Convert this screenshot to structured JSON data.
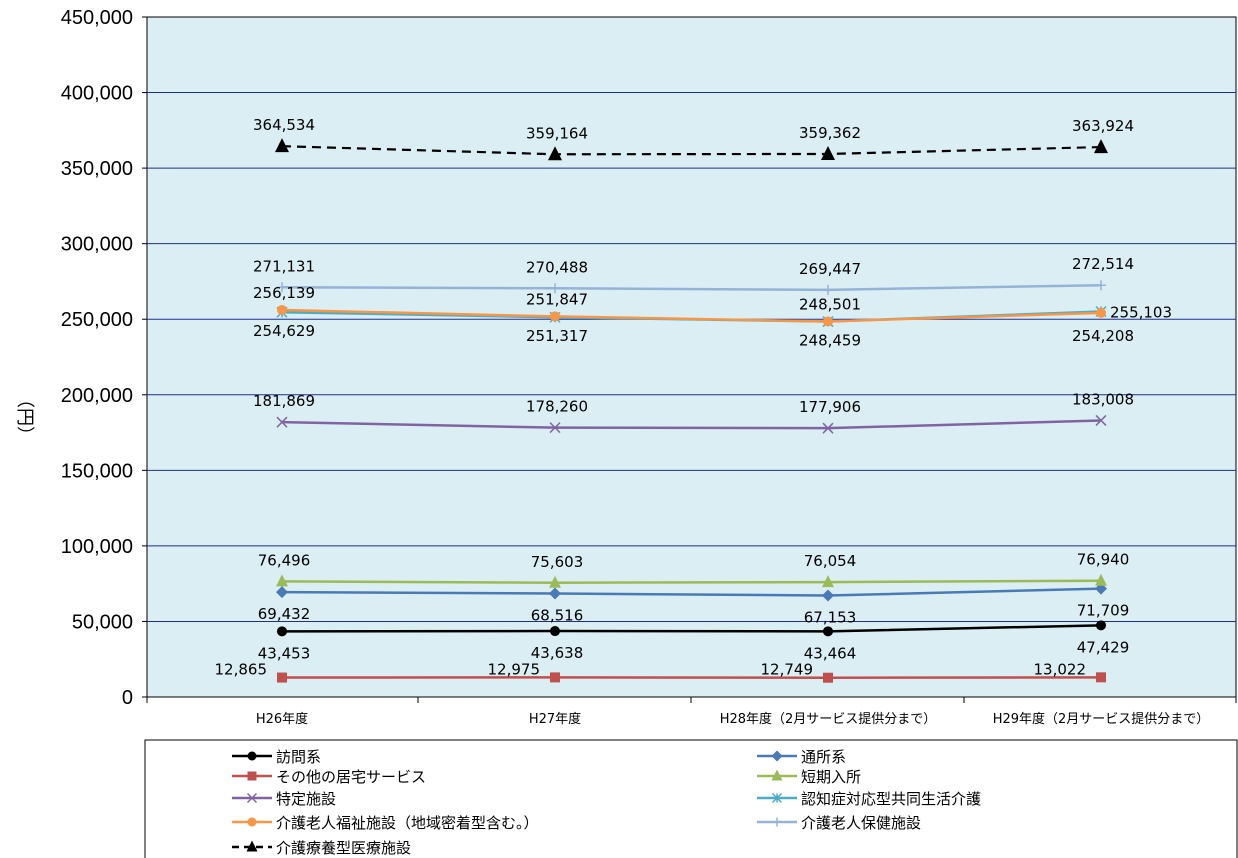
{
  "chart_data": {
    "type": "line",
    "ylabel": "（円）",
    "ylim": [
      0,
      450000
    ],
    "ytick_step": 50000,
    "ytick_labels": [
      "0",
      "50,000",
      "100,000",
      "150,000",
      "200,000",
      "250,000",
      "300,000",
      "350,000",
      "400,000",
      "450,000"
    ],
    "categories": [
      "H26年度",
      "H27年度",
      "H28年度（2月サービス提供分まで）",
      "H29年度（2月サービス提供分まで）"
    ],
    "grid": true,
    "plot_background": "#daeef3",
    "gridline_color": "#1f2f8f",
    "legend_position": "bottom",
    "series": [
      {
        "name": "訪問系",
        "values": [
          43453,
          43638,
          43464,
          47429
        ],
        "labels": [
          "43,453",
          "43,638",
          "43,464",
          "47,429"
        ],
        "color": "#000000",
        "marker": "circle",
        "dash": false,
        "label_pos": "below"
      },
      {
        "name": "通所系",
        "values": [
          69432,
          68516,
          67153,
          71709
        ],
        "labels": [
          "69,432",
          "68,516",
          "67,153",
          "71,709"
        ],
        "color": "#4a7ab5",
        "marker": "diamond",
        "dash": false,
        "label_pos": "below"
      },
      {
        "name": "その他の居宅サービス",
        "values": [
          12865,
          12975,
          12749,
          13022
        ],
        "labels": [
          "12,865",
          "12,975",
          "12,749",
          "13,022"
        ],
        "color": "#c0504d",
        "marker": "square",
        "dash": false,
        "label_pos": "upleft"
      },
      {
        "name": "短期入所",
        "values": [
          76496,
          75603,
          76054,
          76940
        ],
        "labels": [
          "76,496",
          "75,603",
          "76,054",
          "76,940"
        ],
        "color": "#9bbb59",
        "marker": "triangle",
        "dash": false,
        "label_pos": "above"
      },
      {
        "name": "特定施設",
        "values": [
          181869,
          178260,
          177906,
          183008
        ],
        "labels": [
          "181,869",
          "178,260",
          "177,906",
          "183,008"
        ],
        "color": "#8064a2",
        "marker": "x",
        "dash": false,
        "label_pos": "above"
      },
      {
        "name": "認知症対応型共同生活介護",
        "values": [
          254629,
          251317,
          248459,
          255103
        ],
        "labels": [
          "254,629",
          "251,317",
          "248,459",
          "255,103"
        ],
        "color": "#4bacc6",
        "marker": "asterisk",
        "dash": false,
        "label_pos": "mixed"
      },
      {
        "name": "介護老人福祉施設（地域密着型含む。）",
        "values": [
          256139,
          251847,
          248501,
          254208
        ],
        "labels": [
          "256,139",
          "251,847",
          "248,501",
          "254,208"
        ],
        "color": "#f79646",
        "marker": "circle",
        "dash": false,
        "label_pos": "mixed"
      },
      {
        "name": "介護老人保健施設",
        "values": [
          271131,
          270488,
          269447,
          272514
        ],
        "labels": [
          "271,131",
          "270,488",
          "269,447",
          "272,514"
        ],
        "color": "#95b3d7",
        "marker": "plus",
        "dash": false,
        "label_pos": "above"
      },
      {
        "name": "介護療養型医療施設",
        "values": [
          364534,
          359164,
          359362,
          363924
        ],
        "labels": [
          "364,534",
          "359,164",
          "359,362",
          "363,924"
        ],
        "color": "#000000",
        "marker": "triangle",
        "dash": true,
        "label_pos": "above"
      }
    ]
  }
}
